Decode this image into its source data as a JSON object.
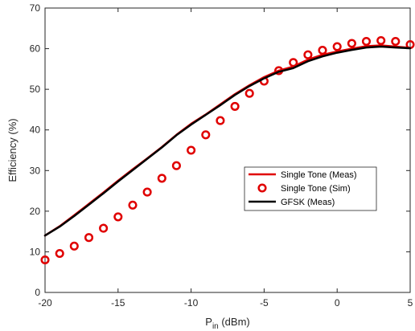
{
  "chart_data": {
    "type": "line",
    "xlabel": "P",
    "xlabel_sub": "in",
    "xlabel_unit": " (dBm)",
    "ylabel": "Efficiency (%)",
    "xlim": [
      -20,
      5
    ],
    "ylim": [
      0,
      70
    ],
    "xticks": [
      -20,
      -15,
      -10,
      -5,
      0,
      5
    ],
    "yticks": [
      0,
      10,
      20,
      30,
      40,
      50,
      60,
      70
    ],
    "grid": false,
    "legend_position": "center-right",
    "series": [
      {
        "name": "Single Tone (Meas)",
        "style": "line",
        "color": "#e00000",
        "x": [
          -20,
          -19,
          -18,
          -17,
          -16,
          -15,
          -14,
          -13,
          -12,
          -11,
          -10,
          -9,
          -8,
          -7,
          -6,
          -5,
          -4,
          -3,
          -2,
          -1,
          0,
          1,
          2,
          3,
          4,
          5
        ],
        "y": [
          14.0,
          16.3,
          19.0,
          21.8,
          24.6,
          27.5,
          30.3,
          33.0,
          35.8,
          38.8,
          41.5,
          43.8,
          46.3,
          48.8,
          51.0,
          53.0,
          54.6,
          55.6,
          57.3,
          58.5,
          59.3,
          60.0,
          60.6,
          60.8,
          60.5,
          60.2
        ]
      },
      {
        "name": "Single Tone (Sim)",
        "style": "markers",
        "marker": "circle-open",
        "color": "#e00000",
        "x": [
          -20,
          -19,
          -18,
          -17,
          -16,
          -15,
          -14,
          -13,
          -12,
          -11,
          -10,
          -9,
          -8,
          -7,
          -6,
          -5,
          -4,
          -3,
          -2,
          -1,
          0,
          1,
          2,
          3,
          4,
          5
        ],
        "y": [
          8.0,
          9.6,
          11.4,
          13.5,
          15.8,
          18.6,
          21.5,
          24.7,
          28.1,
          31.2,
          35.0,
          38.8,
          42.3,
          45.8,
          49.0,
          52.0,
          54.6,
          56.6,
          58.5,
          59.6,
          60.5,
          61.3,
          61.8,
          62.0,
          61.8,
          61.0
        ]
      },
      {
        "name": "GFSK (Meas)",
        "style": "line",
        "color": "#000000",
        "x": [
          -20,
          -19,
          -18,
          -17,
          -16,
          -15,
          -14,
          -13,
          -12,
          -11,
          -10,
          -9,
          -8,
          -7,
          -6,
          -5,
          -4,
          -3,
          -2,
          -1,
          0,
          1,
          2,
          3,
          4,
          5
        ],
        "y": [
          14.0,
          16.2,
          18.8,
          21.6,
          24.4,
          27.3,
          30.1,
          32.9,
          35.7,
          38.7,
          41.3,
          43.7,
          46.1,
          48.6,
          50.8,
          52.7,
          54.3,
          55.2,
          56.9,
          58.1,
          59.0,
          59.7,
          60.3,
          60.5,
          60.3,
          60.1
        ]
      }
    ]
  }
}
